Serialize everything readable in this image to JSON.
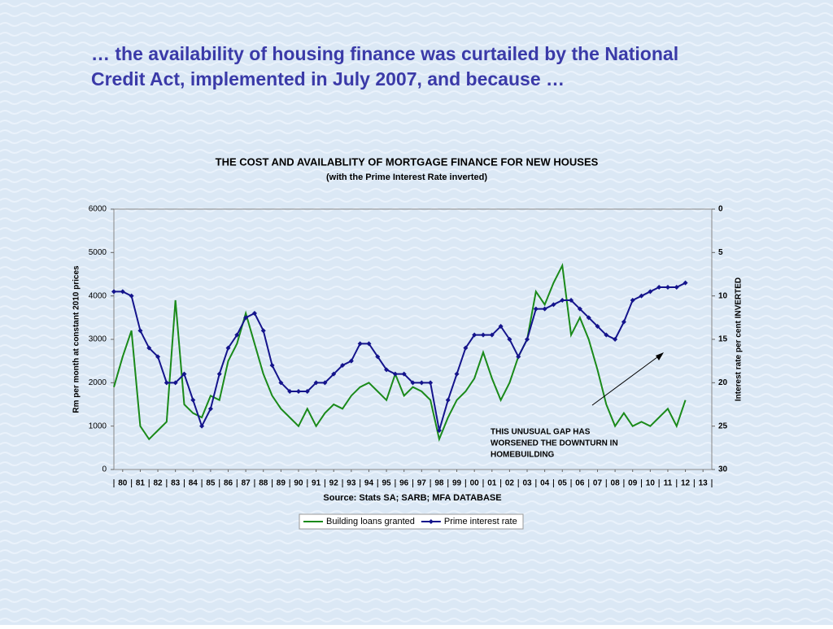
{
  "slide_title": [
    "… the availability of housing finance was curtailed by the National",
    "Credit Act, implemented in July 2007, and because …"
  ],
  "chart_data": {
    "type": "line",
    "title": "THE COST AND AVAILABLITY OF MORTGAGE FINANCE FOR NEW HOUSES",
    "subtitle": "(with the Prime Interest Rate inverted)",
    "ylabel": "Rm per month at constant 2010 prices",
    "y2label": "Interest rate per cent INVERTED",
    "source": "Source: Stats SA; SARB; MFA DATABASE",
    "annotation": [
      "THIS UNUSUAL GAP HAS",
      "WORSENED THE DOWNTURN IN",
      "HOMEBUILDING"
    ],
    "x": [
      1980,
      1980.5,
      1981,
      1981.5,
      1982,
      1982.5,
      1983,
      1983.5,
      1984,
      1984.5,
      1985,
      1985.5,
      1986,
      1986.5,
      1987,
      1987.5,
      1988,
      1988.5,
      1989,
      1989.5,
      1990,
      1990.5,
      1991,
      1991.5,
      1992,
      1992.5,
      1993,
      1993.5,
      1994,
      1994.5,
      1995,
      1995.5,
      1996,
      1996.5,
      1997,
      1997.5,
      1998,
      1998.5,
      1999,
      1999.5,
      2000,
      2000.5,
      2001,
      2001.5,
      2002,
      2002.5,
      2003,
      2003.5,
      2004,
      2004.5,
      2005,
      2005.5,
      2006,
      2006.5,
      2007,
      2007.5,
      2008,
      2008.5,
      2009,
      2009.5,
      2010,
      2010.5,
      2011,
      2011.5,
      2012,
      2012.5
    ],
    "xlim": [
      1980,
      2014
    ],
    "xticks": [
      {
        "value": 1980.5,
        "label": "80"
      },
      {
        "value": 1981.5,
        "label": "81"
      },
      {
        "value": 1982.5,
        "label": "82"
      },
      {
        "value": 1983.5,
        "label": "83"
      },
      {
        "value": 1984.5,
        "label": "84"
      },
      {
        "value": 1985.5,
        "label": "85"
      },
      {
        "value": 1986.5,
        "label": "86"
      },
      {
        "value": 1987.5,
        "label": "87"
      },
      {
        "value": 1988.5,
        "label": "88"
      },
      {
        "value": 1989.5,
        "label": "89"
      },
      {
        "value": 1990.5,
        "label": "90"
      },
      {
        "value": 1991.5,
        "label": "91"
      },
      {
        "value": 1992.5,
        "label": "92"
      },
      {
        "value": 1993.5,
        "label": "93"
      },
      {
        "value": 1994.5,
        "label": "94"
      },
      {
        "value": 1995.5,
        "label": "95"
      },
      {
        "value": 1996.5,
        "label": "96"
      },
      {
        "value": 1997.5,
        "label": "97"
      },
      {
        "value": 1998.5,
        "label": "98"
      },
      {
        "value": 1999.5,
        "label": "99"
      },
      {
        "value": 2000.5,
        "label": "00"
      },
      {
        "value": 2001.5,
        "label": "01"
      },
      {
        "value": 2002.5,
        "label": "02"
      },
      {
        "value": 2003.5,
        "label": "03"
      },
      {
        "value": 2004.5,
        "label": "04"
      },
      {
        "value": 2005.5,
        "label": "05"
      },
      {
        "value": 2006.5,
        "label": "06"
      },
      {
        "value": 2007.5,
        "label": "07"
      },
      {
        "value": 2008.5,
        "label": "08"
      },
      {
        "value": 2009.5,
        "label": "09"
      },
      {
        "value": 2010.5,
        "label": "10"
      },
      {
        "value": 2011.5,
        "label": "11"
      },
      {
        "value": 2012.5,
        "label": "12"
      },
      {
        "value": 2013.5,
        "label": "13"
      }
    ],
    "ylim": [
      0,
      6000
    ],
    "yticks": [
      0,
      1000,
      2000,
      3000,
      4000,
      5000,
      6000
    ],
    "y2lim": [
      0,
      30
    ],
    "y2ticks": [
      0,
      5,
      10,
      15,
      20,
      25,
      30
    ],
    "y2_inverted": true,
    "series": [
      {
        "name": "Building loans granted",
        "color": "#1a8a1a",
        "values": [
          1900,
          2600,
          3200,
          1000,
          700,
          900,
          1100,
          3900,
          1500,
          1300,
          1200,
          1700,
          1600,
          2500,
          2900,
          3600,
          2900,
          2200,
          1700,
          1400,
          1200,
          1000,
          1400,
          1000,
          1300,
          1500,
          1400,
          1700,
          1900,
          2000,
          1800,
          1600,
          2200,
          1700,
          1900,
          1800,
          1600,
          700,
          1200,
          1600,
          1800,
          2100,
          2700,
          2100,
          1600,
          2000,
          2600,
          3000,
          4100,
          3800,
          4300,
          4700,
          3100,
          3500,
          3000,
          2300,
          1500,
          1000,
          1300,
          1000,
          1100,
          1000,
          1200,
          1400,
          1000,
          1600
        ]
      },
      {
        "name": "Prime interest rate",
        "color": "#14148c",
        "axis": "y2",
        "marker": "diamond",
        "values": [
          9.5,
          9.5,
          10,
          14,
          16,
          17,
          20,
          20,
          19,
          22,
          25,
          23,
          19,
          16,
          14.5,
          12.5,
          12,
          14,
          18,
          20,
          21,
          21,
          21,
          20,
          20,
          19,
          18,
          17.5,
          15.5,
          15.5,
          17,
          18.5,
          19,
          19,
          20,
          20,
          20,
          25.5,
          22,
          19,
          16,
          14.5,
          14.5,
          14.5,
          13.5,
          15,
          17,
          15,
          11.5,
          11.5,
          11,
          10.5,
          10.5,
          11.5,
          12.5,
          13.5,
          14.5,
          15,
          13,
          10.5,
          10,
          9.5,
          9,
          9,
          9,
          8.5
        ]
      }
    ],
    "legend": "bottom"
  }
}
